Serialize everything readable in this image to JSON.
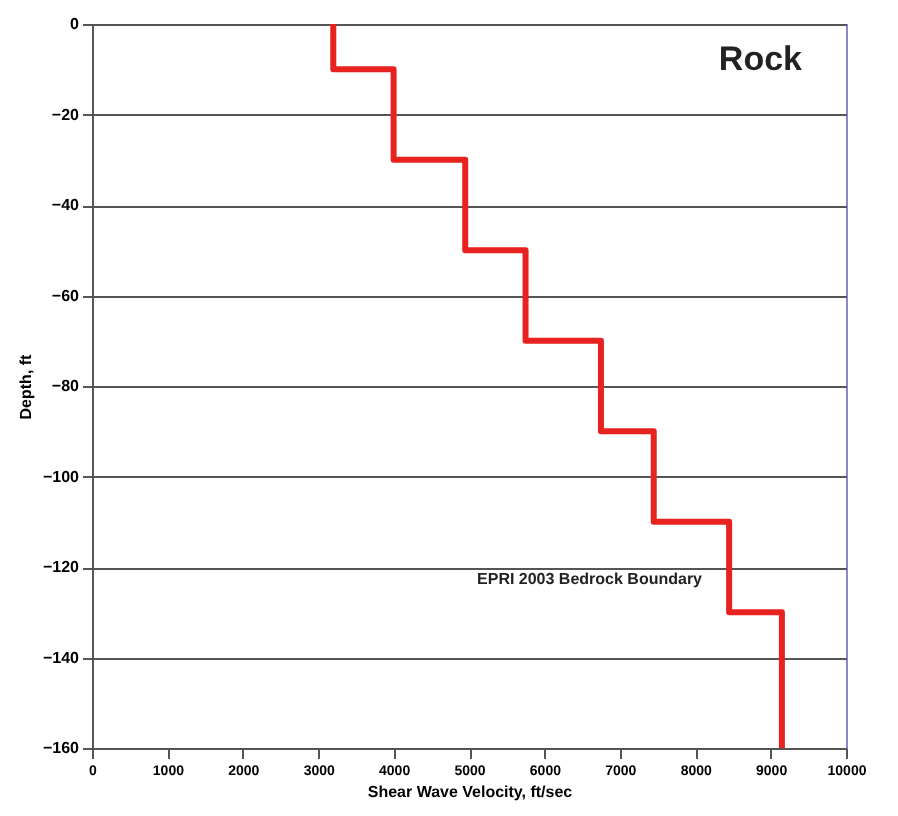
{
  "chart_data": {
    "type": "line",
    "title": "Rock",
    "xlabel": "Shear Wave Velocity, ft/sec",
    "ylabel": "Depth, ft",
    "series": [
      {
        "color": "#e8231f",
        "x": [
          3200,
          3200,
          4000,
          4000,
          4950,
          4950,
          5750,
          5750,
          6750,
          6750,
          7450,
          7450,
          8450,
          8450,
          9150,
          9150
        ],
        "values": [
          0,
          -10,
          -10,
          -30,
          -30,
          -50,
          -50,
          -70,
          -70,
          -90,
          -90,
          -110,
          -110,
          -130,
          -130,
          -160
        ]
      }
    ],
    "xlim": [
      0,
      10000
    ],
    "xticks": [
      0,
      1000,
      2000,
      3000,
      4000,
      5000,
      6000,
      7000,
      8000,
      9000,
      10000
    ],
    "ylim": [
      -160,
      0
    ],
    "yticks": [
      0,
      -20,
      -40,
      -60,
      -80,
      -100,
      -120,
      -140,
      -160
    ],
    "grid": "y",
    "marker": "none",
    "line_style": "solid",
    "annotations": [
      "EPRI 2003 Bedrock Boundary"
    ]
  }
}
